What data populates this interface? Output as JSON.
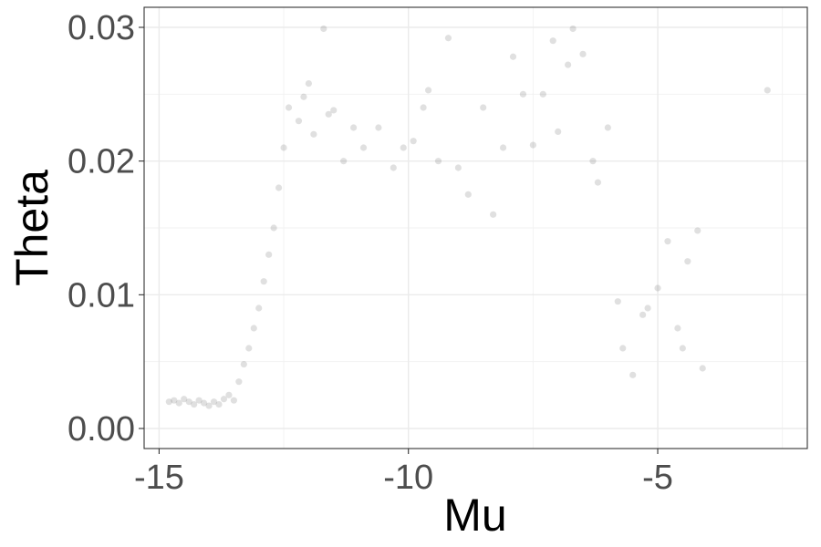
{
  "chart_data": {
    "type": "scatter",
    "xlabel": "Mu",
    "ylabel": "Theta",
    "xlim": [
      -15.3,
      -2.0
    ],
    "ylim": [
      -0.0015,
      0.0315
    ],
    "x_ticks": [
      -15,
      -10,
      -5
    ],
    "x_tick_labels": [
      "-15",
      "-10",
      "-5"
    ],
    "x_minor_ticks": [
      -12.5,
      -7.5,
      -2.5
    ],
    "y_ticks": [
      0.0,
      0.01,
      0.02,
      0.03
    ],
    "y_tick_labels": [
      "0.00",
      "0.01",
      "0.02",
      "0.03"
    ],
    "y_minor_ticks": [
      0.005,
      0.015,
      0.025
    ],
    "grid": true,
    "legend": "none",
    "point_color": "#000000",
    "point_opacity": 0.12,
    "theme": "bw",
    "points": [
      {
        "x": -14.8,
        "y": 0.002
      },
      {
        "x": -14.7,
        "y": 0.0021
      },
      {
        "x": -14.6,
        "y": 0.0019
      },
      {
        "x": -14.5,
        "y": 0.0022
      },
      {
        "x": -14.4,
        "y": 0.002
      },
      {
        "x": -14.3,
        "y": 0.0018
      },
      {
        "x": -14.2,
        "y": 0.0021
      },
      {
        "x": -14.1,
        "y": 0.0019
      },
      {
        "x": -14.0,
        "y": 0.0017
      },
      {
        "x": -13.9,
        "y": 0.002
      },
      {
        "x": -13.8,
        "y": 0.0018
      },
      {
        "x": -13.7,
        "y": 0.0022
      },
      {
        "x": -13.6,
        "y": 0.0025
      },
      {
        "x": -13.5,
        "y": 0.0021
      },
      {
        "x": -13.4,
        "y": 0.0035
      },
      {
        "x": -13.3,
        "y": 0.0048
      },
      {
        "x": -13.2,
        "y": 0.006
      },
      {
        "x": -13.1,
        "y": 0.0075
      },
      {
        "x": -13.0,
        "y": 0.009
      },
      {
        "x": -12.9,
        "y": 0.011
      },
      {
        "x": -12.8,
        "y": 0.013
      },
      {
        "x": -12.7,
        "y": 0.015
      },
      {
        "x": -12.6,
        "y": 0.018
      },
      {
        "x": -12.5,
        "y": 0.021
      },
      {
        "x": -12.4,
        "y": 0.024
      },
      {
        "x": -12.2,
        "y": 0.023
      },
      {
        "x": -12.1,
        "y": 0.0248
      },
      {
        "x": -12.0,
        "y": 0.0258
      },
      {
        "x": -11.9,
        "y": 0.022
      },
      {
        "x": -11.7,
        "y": 0.0299
      },
      {
        "x": -11.6,
        "y": 0.0235
      },
      {
        "x": -11.5,
        "y": 0.0238
      },
      {
        "x": -11.3,
        "y": 0.02
      },
      {
        "x": -11.1,
        "y": 0.0225
      },
      {
        "x": -10.9,
        "y": 0.021
      },
      {
        "x": -10.6,
        "y": 0.0225
      },
      {
        "x": -10.3,
        "y": 0.0195
      },
      {
        "x": -10.1,
        "y": 0.021
      },
      {
        "x": -9.9,
        "y": 0.0215
      },
      {
        "x": -9.7,
        "y": 0.024
      },
      {
        "x": -9.6,
        "y": 0.0253
      },
      {
        "x": -9.4,
        "y": 0.02
      },
      {
        "x": -9.2,
        "y": 0.0292
      },
      {
        "x": -9.0,
        "y": 0.0195
      },
      {
        "x": -8.8,
        "y": 0.0175
      },
      {
        "x": -8.5,
        "y": 0.024
      },
      {
        "x": -8.3,
        "y": 0.016
      },
      {
        "x": -8.1,
        "y": 0.021
      },
      {
        "x": -7.9,
        "y": 0.0278
      },
      {
        "x": -7.7,
        "y": 0.025
      },
      {
        "x": -7.5,
        "y": 0.0212
      },
      {
        "x": -7.3,
        "y": 0.025
      },
      {
        "x": -7.1,
        "y": 0.029
      },
      {
        "x": -7.0,
        "y": 0.0222
      },
      {
        "x": -6.8,
        "y": 0.0272
      },
      {
        "x": -6.7,
        "y": 0.0299
      },
      {
        "x": -6.5,
        "y": 0.028
      },
      {
        "x": -6.3,
        "y": 0.02
      },
      {
        "x": -6.2,
        "y": 0.0184
      },
      {
        "x": -6.0,
        "y": 0.0225
      },
      {
        "x": -5.8,
        "y": 0.0095
      },
      {
        "x": -5.7,
        "y": 0.006
      },
      {
        "x": -5.5,
        "y": 0.004
      },
      {
        "x": -5.3,
        "y": 0.0085
      },
      {
        "x": -5.2,
        "y": 0.009
      },
      {
        "x": -5.0,
        "y": 0.0105
      },
      {
        "x": -4.8,
        "y": 0.014
      },
      {
        "x": -4.6,
        "y": 0.0075
      },
      {
        "x": -4.5,
        "y": 0.006
      },
      {
        "x": -4.4,
        "y": 0.0125
      },
      {
        "x": -4.2,
        "y": 0.0148
      },
      {
        "x": -4.1,
        "y": 0.0045
      },
      {
        "x": -2.8,
        "y": 0.0253
      }
    ]
  }
}
